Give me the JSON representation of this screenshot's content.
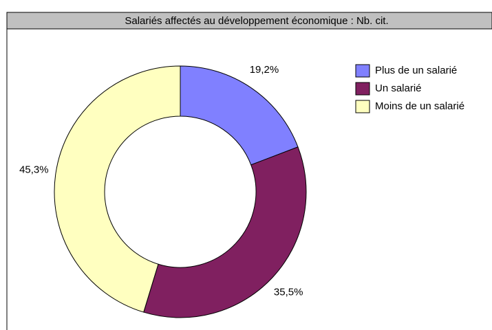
{
  "chart_data": {
    "type": "donut",
    "title": "Salariés affectés au développement économique : Nb. cit.",
    "categories": [
      "Plus de un salarié",
      "Un salarié",
      "Moins de un salarié"
    ],
    "values": [
      19.2,
      35.5,
      45.3
    ],
    "value_labels": [
      "19,2%",
      "35,5%",
      "45,3%"
    ],
    "colors": [
      "#8080ff",
      "#802060",
      "#ffffc0"
    ],
    "legend": "right"
  }
}
